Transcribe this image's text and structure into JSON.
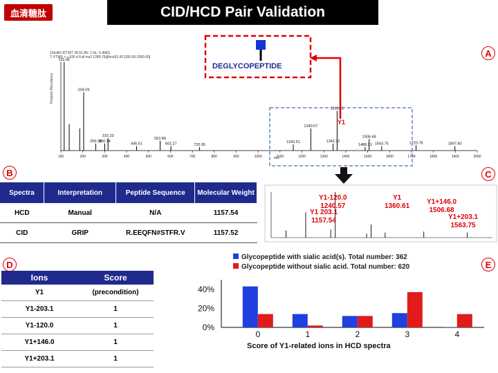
{
  "badge": "血清糖肽",
  "title": "CID/HCD Pair Validation",
  "panel_labels": {
    "a": "A",
    "b": "B",
    "c": "C",
    "d": "D",
    "e": "E"
  },
  "spectrum": {
    "header_line1": "10mAG  RT:207  26.61  AV: 1  NL: 5.46E5",
    "header_line2": "T: FTMS + c ESI d Full ms2 1289.79@hcd31.00 [100.00-2000.00]",
    "yaxis_label": "Relative Abundance",
    "xlabel": "m/z",
    "deglyco_label": "DEGLYCOPEPTIDE",
    "y1_label": "Y1",
    "xticks": [
      "100",
      "200",
      "300",
      "400",
      "500",
      "600",
      "700",
      "800",
      "900",
      "1000",
      "1100",
      "1200",
      "1300",
      "1400",
      "1500",
      "1600",
      "1700",
      "1800",
      "1900",
      "2000"
    ],
    "peaks": [
      {
        "mz": 115.06,
        "rel": 100,
        "label": "115.06"
      },
      {
        "mz": 204.09,
        "rel": 66,
        "label": "204.09"
      },
      {
        "mz": 138.06,
        "rel": 30,
        "label": ""
      },
      {
        "mz": 186.08,
        "rel": 25,
        "label": ""
      },
      {
        "mz": 259.08,
        "rel": 8,
        "label": "259.08"
      },
      {
        "mz": 300.14,
        "rel": 8,
        "label": "300.14"
      },
      {
        "mz": 315.23,
        "rel": 14,
        "label": "315.23"
      },
      {
        "mz": 445.51,
        "rel": 5,
        "label": "445.51"
      },
      {
        "mz": 552.89,
        "rel": 11,
        "label": "552.89"
      },
      {
        "mz": 602.27,
        "rel": 5,
        "label": "602.27"
      },
      {
        "mz": 732.95,
        "rel": 4,
        "label": "732.95"
      },
      {
        "mz": 1160.51,
        "rel": 7,
        "label": "1160.51"
      },
      {
        "mz": 1240.57,
        "rel": 25,
        "label": "1240.57"
      },
      {
        "mz": 1342.32,
        "rel": 8,
        "label": "1342.32"
      },
      {
        "mz": 1360.61,
        "rel": 45,
        "label": "1360.61"
      },
      {
        "mz": 1488.21,
        "rel": 4,
        "label": "1488.21"
      },
      {
        "mz": 1506.68,
        "rel": 13,
        "label": "1506.68"
      },
      {
        "mz": 1563.75,
        "rel": 5,
        "label": "1563.75"
      },
      {
        "mz": 1720.78,
        "rel": 6,
        "label": "1720.78"
      },
      {
        "mz": 1897.8,
        "rel": 5,
        "label": "1897.80"
      }
    ]
  },
  "zoom_labels": {
    "y1_120": "Y1-120.0",
    "y1_120_mz": "1240.57",
    "y1": "Y1",
    "y1_mz": "1360.61",
    "y1_203": "Y1 203.1",
    "y1_203_mz": "1157.54",
    "y1_146": "Y1+146.0",
    "y1_146_mz": "1506.68",
    "y1_203p": "Y1+203.1",
    "y1_203p_mz": "1563.75"
  },
  "table_b": {
    "headers": [
      "Spectra",
      "Interpretation",
      "Peptide Sequence",
      "Molecular Weight"
    ],
    "rows": [
      [
        "HCD",
        "Manual",
        "N/A",
        "1157.54"
      ],
      [
        "CID",
        "GRIP",
        "R.EEQFN#STFR.V",
        "1157.52"
      ]
    ]
  },
  "table_d": {
    "headers": [
      "Ions",
      "Score"
    ],
    "rows": [
      [
        "Y1",
        "(precondition)"
      ],
      [
        "Y1-203.1",
        "1"
      ],
      [
        "Y1-120.0",
        "1"
      ],
      [
        "Y1+146.0",
        "1"
      ],
      [
        "Y1+203.1",
        "1"
      ]
    ]
  },
  "chart_data": {
    "type": "bar",
    "categories": [
      "0",
      "1",
      "2",
      "3",
      "4"
    ],
    "series": [
      {
        "name": "Glycopeptide with sialic acid(s). Total number: 362",
        "color": "#1f3fe0",
        "values": [
          43,
          14,
          12,
          15,
          0.3
        ]
      },
      {
        "name": "Glycopeptide without sialic acid. Total number: 620",
        "color": "#e01b1b",
        "values": [
          14,
          2,
          12,
          37,
          14
        ]
      }
    ],
    "yticks": [
      "0%",
      "20%",
      "40%"
    ],
    "ylim": [
      0,
      50
    ],
    "xlabel": "Score of Y1-related ions in HCD spectra",
    "legend_position": "top"
  }
}
